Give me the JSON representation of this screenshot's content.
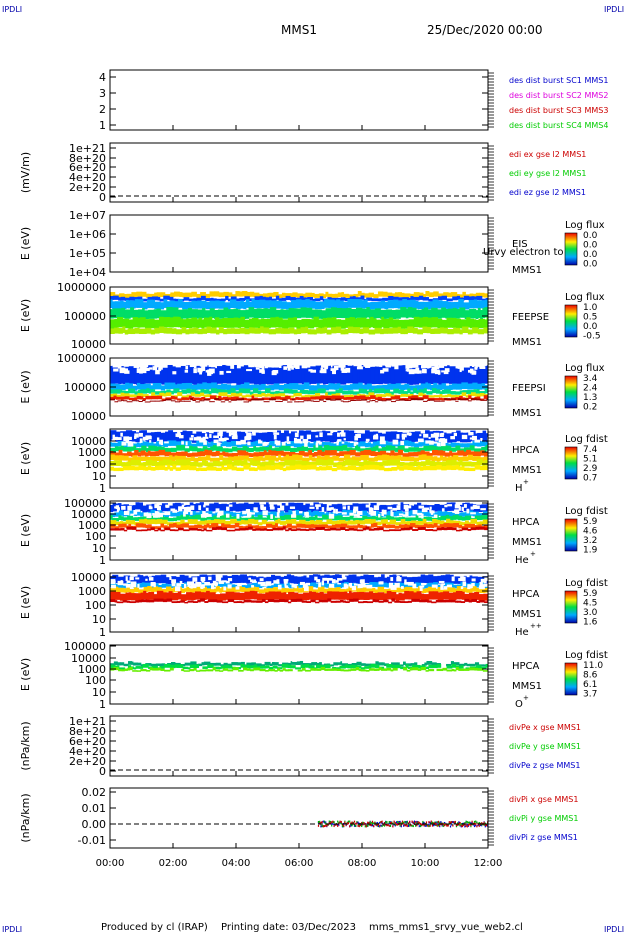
{
  "corner_labels": {
    "top_left": "IPDLI",
    "top_right": "IPDLI",
    "bottom_left": "IPDLI",
    "bottom_right": "IPDLI"
  },
  "header": {
    "spacecraft": "MMS1",
    "datetime": "25/Dec/2020 00:00"
  },
  "footer": {
    "producer": "Produced by cl (IRAP)",
    "printing_date": "Printing date: 03/Dec/2023",
    "script": "mms_mms1_srvy_vue_web2.cl"
  },
  "colors": {
    "blue": "#0000cc",
    "magenta": "#dd00dd",
    "red": "#cc0000",
    "green": "#00cc00"
  },
  "chart_data": {
    "type": "multi-panel time series",
    "x_tick_labels": [
      "00:00",
      "02:00",
      "04:00",
      "06:00",
      "08:00",
      "10:00",
      "12:00"
    ],
    "x_range_hours": [
      0,
      12
    ],
    "panels": [
      {
        "id": "dist",
        "type": "line",
        "ylabel": "",
        "ytick_labels": [
          "4",
          "3",
          "2",
          "1"
        ],
        "legend": [
          {
            "text": "des dist burst SC1 MMS1",
            "color": "#0000cc"
          },
          {
            "text": "des dist burst SC2 MMS2",
            "color": "#dd00dd"
          },
          {
            "text": "des dist burst SC3 MMS3",
            "color": "#cc0000"
          },
          {
            "text": "des dist burst SC4 MMS4",
            "color": "#00cc00"
          }
        ]
      },
      {
        "id": "edi",
        "type": "line",
        "ylabel": "(mV/m)",
        "ytick_labels": [
          "1e+21",
          "8e+20",
          "6e+20",
          "4e+20",
          "2e+20",
          "0"
        ],
        "zero_line": true,
        "legend": [
          {
            "text": "edi ex gse l2 MMS1",
            "color": "#cc0000"
          },
          {
            "text": "edi ey gse l2 MMS1",
            "color": "#00cc00"
          },
          {
            "text": "edi ez gse l2 MMS1",
            "color": "#0000cc"
          }
        ]
      },
      {
        "id": "eis",
        "type": "heatmap",
        "ylabel": "E (eV)",
        "ytick_labels": [
          "1e+07",
          "1e+06",
          "1e+05",
          "1e+04"
        ],
        "instrument": [
          "EIS",
          "MMS1"
        ],
        "overlay_text": "Urvy electron to",
        "colorbar_title": "Log flux",
        "colorbar_ticks": [
          "0.0",
          "0.0",
          "0.0",
          "0.0"
        ]
      },
      {
        "id": "feepse",
        "type": "heatmap",
        "ylabel": "E (eV)",
        "ytick_labels": [
          "1000000",
          "100000",
          "10000"
        ],
        "instrument": [
          "FEEPSE",
          "MMS1"
        ],
        "colorbar_title": "Log flux",
        "colorbar_ticks": [
          "1.0",
          "0.5",
          "0.0",
          "-0.5"
        ]
      },
      {
        "id": "feepsi",
        "type": "heatmap",
        "ylabel": "E (eV)",
        "ytick_labels": [
          "1000000",
          "100000",
          "10000"
        ],
        "instrument": [
          "FEEPSI",
          "MMS1"
        ],
        "colorbar_title": "Log flux",
        "colorbar_ticks": [
          "3.4",
          "2.4",
          "1.3",
          "0.2"
        ]
      },
      {
        "id": "hpca_h",
        "type": "heatmap",
        "ylabel": "E (eV)",
        "ytick_labels": [
          "10000",
          "1000",
          "100",
          "10",
          "1"
        ],
        "instrument": [
          "HPCA",
          "MMS1"
        ],
        "species": "H",
        "charge": "+",
        "colorbar_title": "Log fdist",
        "colorbar_ticks": [
          "7.4",
          "5.1",
          "2.9",
          "0.7"
        ]
      },
      {
        "id": "hpca_he",
        "type": "heatmap",
        "ylabel": "E (eV)",
        "ytick_labels": [
          "100000",
          "10000",
          "1000",
          "100",
          "10",
          "1"
        ],
        "instrument": [
          "HPCA",
          "MMS1"
        ],
        "species": "He",
        "charge": "+",
        "colorbar_title": "Log fdist",
        "colorbar_ticks": [
          "5.9",
          "4.6",
          "3.2",
          "1.9"
        ]
      },
      {
        "id": "hpca_he2",
        "type": "heatmap",
        "ylabel": "E (eV)",
        "ytick_labels": [
          "10000",
          "1000",
          "100",
          "10",
          "1"
        ],
        "instrument": [
          "HPCA",
          "MMS1"
        ],
        "species": "He",
        "charge": "++",
        "colorbar_title": "Log fdist",
        "colorbar_ticks": [
          "5.9",
          "4.5",
          "3.0",
          "1.6"
        ]
      },
      {
        "id": "hpca_o",
        "type": "heatmap",
        "ylabel": "E (eV)",
        "ytick_labels": [
          "100000",
          "10000",
          "1000",
          "100",
          "10",
          "1"
        ],
        "instrument": [
          "HPCA",
          "MMS1"
        ],
        "species": "O",
        "charge": "+",
        "colorbar_title": "Log fdist",
        "colorbar_ticks": [
          "11.0",
          "8.6",
          "6.1",
          "3.7"
        ]
      },
      {
        "id": "divpe",
        "type": "line",
        "ylabel": "(nPa/km)",
        "ytick_labels": [
          "1e+21",
          "8e+20",
          "6e+20",
          "4e+20",
          "2e+20",
          "0"
        ],
        "zero_line": true,
        "legend": [
          {
            "text": "divPe x gse MMS1",
            "color": "#cc0000"
          },
          {
            "text": "divPe y gse MMS1",
            "color": "#00cc00"
          },
          {
            "text": "divPe z gse MMS1",
            "color": "#0000cc"
          }
        ]
      },
      {
        "id": "divpi",
        "type": "line",
        "ylabel": "(nPa/km)",
        "ytick_labels": [
          "0.02",
          "0.01",
          "0.00",
          "-0.01"
        ],
        "zero_line": true,
        "data_start_hour": 6.6,
        "legend": [
          {
            "text": "divPi x gse MMS1",
            "color": "#cc0000"
          },
          {
            "text": "divPi y gse MMS1",
            "color": "#00cc00"
          },
          {
            "text": "divPi z gse MMS1",
            "color": "#0000cc"
          }
        ]
      }
    ]
  }
}
